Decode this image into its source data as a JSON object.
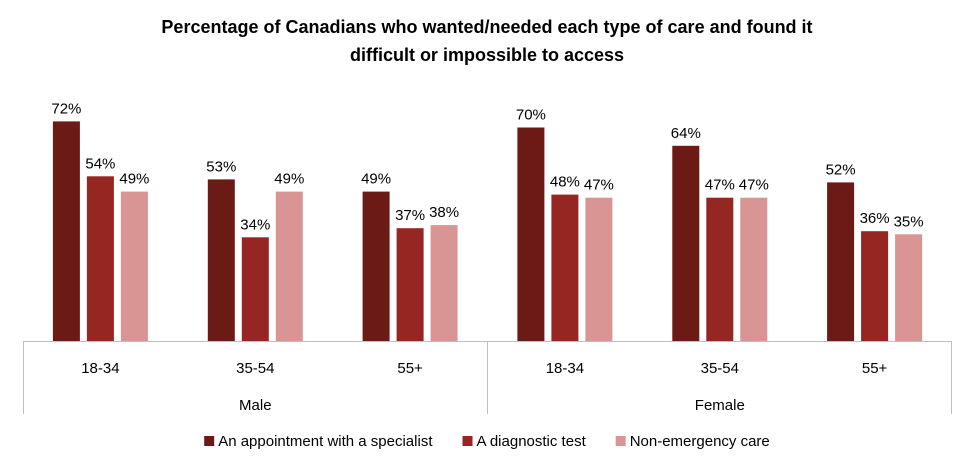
{
  "chart_data": {
    "type": "bar",
    "title_lines": [
      "Percentage of Canadians who wanted/needed each type of care and found it",
      "difficult or impossible to access"
    ],
    "groups": [
      {
        "label": "Male",
        "categories": [
          "18-34",
          "35-54",
          "55+"
        ]
      },
      {
        "label": "Female",
        "categories": [
          "18-34",
          "35-54",
          "55+"
        ]
      }
    ],
    "series": [
      {
        "name": "An appointment with a specialist",
        "color": "#6b1a16",
        "values": [
          72,
          53,
          49,
          70,
          64,
          52
        ]
      },
      {
        "name": "A diagnostic test",
        "color": "#952622",
        "values": [
          54,
          34,
          37,
          48,
          47,
          36
        ]
      },
      {
        "name": "Non-emergency care",
        "color": "#d99594",
        "values": [
          49,
          49,
          38,
          47,
          47,
          35
        ]
      }
    ],
    "value_suffix": "%",
    "ylim": [
      0,
      80
    ],
    "grid": false,
    "legend_position": "bottom"
  }
}
